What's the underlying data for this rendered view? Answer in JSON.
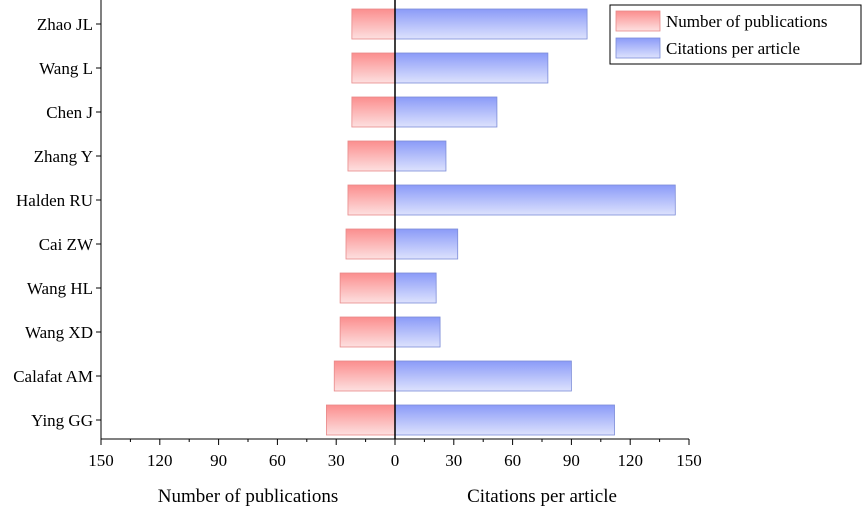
{
  "chart_data": {
    "type": "bar",
    "orientation": "horizontal-diverging",
    "categories": [
      "Zhao JL",
      "Wang L",
      "Chen J",
      "Zhang Y",
      "Halden RU",
      "Cai ZW",
      "Wang HL",
      "Wang XD",
      "Calafat AM",
      "Ying GG"
    ],
    "series": [
      {
        "name": "Number of publications",
        "side": "left",
        "color": "#f7a3a3",
        "values": [
          22,
          22,
          22,
          24,
          24,
          25,
          28,
          28,
          31,
          35
        ]
      },
      {
        "name": "Citations per article",
        "side": "right",
        "color": "#a3aff7",
        "values": [
          98,
          78,
          52,
          26,
          143,
          32,
          21,
          23,
          90,
          112
        ]
      }
    ],
    "xlim": [
      -150,
      150
    ],
    "xticks": [
      -150,
      -120,
      -90,
      -60,
      -30,
      0,
      30,
      60,
      90,
      120,
      150
    ],
    "xtick_labels": [
      "150",
      "120",
      "90",
      "60",
      "30",
      "0",
      "30",
      "60",
      "90",
      "120",
      "150"
    ],
    "xlabel_left": "Number of publications",
    "xlabel_right": "Citations per article",
    "legend_position": "top-right",
    "grid": false
  }
}
